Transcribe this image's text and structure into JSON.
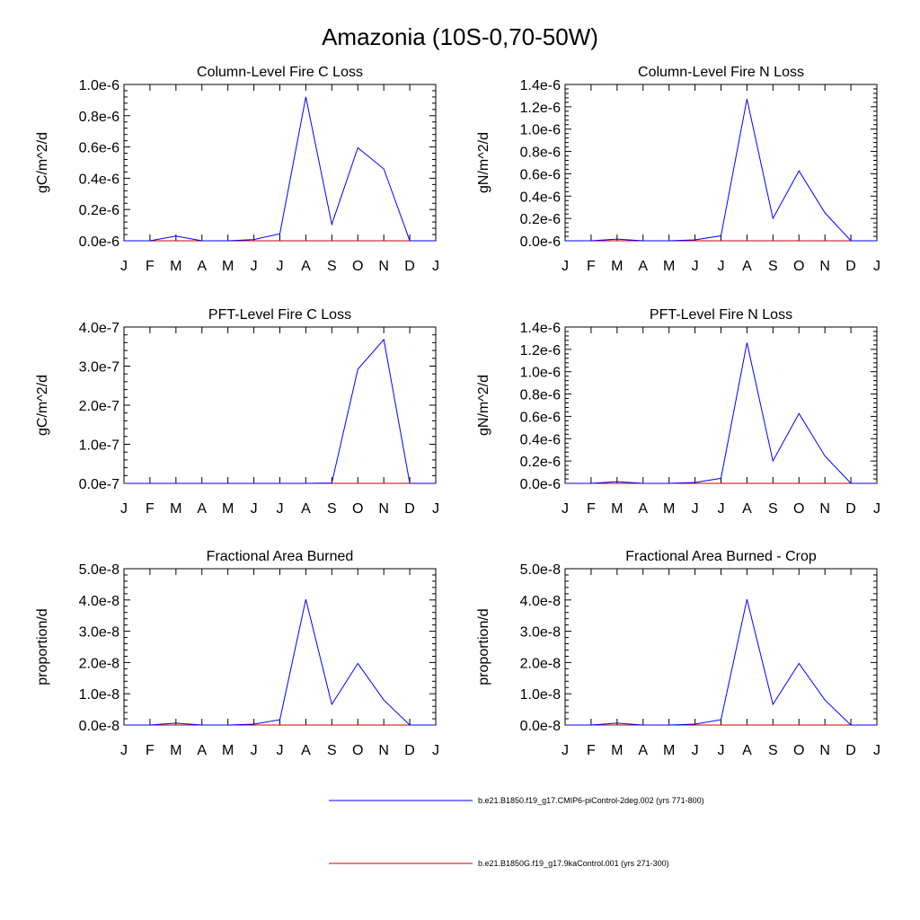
{
  "figure_title": "Amazonia (10S-0,70-50W)",
  "colors": {
    "series_1": "#0000ff",
    "series_2": "#cc0000"
  },
  "legend": {
    "items": [
      {
        "label": "b.e21.B1850.f19_g17.CMIP6-piControl-2deg.002 (yrs 771-800)",
        "color": "#0000ff"
      },
      {
        "label": "b.e21.B1850G.f19_g17.9kaControl.001 (yrs 271-300)",
        "color": "#cc0000"
      }
    ]
  },
  "chart_data": [
    {
      "type": "line",
      "title": "Column-Level Fire C Loss",
      "ylabel": "gC/m^2/d",
      "xlabel": "",
      "x": [
        "J",
        "F",
        "M",
        "A",
        "M",
        "J",
        "J",
        "A",
        "S",
        "O",
        "N",
        "D",
        "J"
      ],
      "ylim": [
        0,
        1e-06
      ],
      "yticks": [
        0,
        2e-07,
        4e-07,
        6e-07,
        8e-07,
        1e-06
      ],
      "ytick_labels": [
        "0.0e-6",
        "0.2e-6",
        "0.4e-6",
        "0.6e-6",
        "0.8e-6",
        "1.0e-6"
      ],
      "grid": false,
      "series": [
        {
          "name": "b.e21.B1850.f19_g17.CMIP6-piControl-2deg.002 (yrs 771-800)",
          "color": "#0000ff",
          "values": [
            0,
            0,
            3e-08,
            0,
            0,
            8e-09,
            4.5e-08,
            9.2e-07,
            1.05e-07,
            5.95e-07,
            4.6e-07,
            0,
            0
          ]
        },
        {
          "name": "b.e21.B1850G.f19_g17.9kaControl.001 (yrs 271-300)",
          "color": "#cc0000",
          "values": [
            0,
            0,
            0,
            0,
            0,
            0,
            0,
            0,
            0,
            0,
            0,
            0,
            0
          ]
        }
      ]
    },
    {
      "type": "line",
      "title": "Column-Level Fire N Loss",
      "ylabel": "gN/m^2/d",
      "xlabel": "",
      "x": [
        "J",
        "F",
        "M",
        "A",
        "M",
        "J",
        "J",
        "A",
        "S",
        "O",
        "N",
        "D",
        "J"
      ],
      "ylim": [
        0,
        1.4e-06
      ],
      "yticks": [
        0,
        2e-07,
        4e-07,
        6e-07,
        8e-07,
        1e-06,
        1.2e-06,
        1.4e-06
      ],
      "ytick_labels": [
        "0.0e-6",
        "0.2e-6",
        "0.4e-6",
        "0.6e-6",
        "0.8e-6",
        "1.0e-6",
        "1.2e-6",
        "1.4e-6"
      ],
      "grid": false,
      "series": [
        {
          "name": "b.e21.B1850.f19_g17.CMIP6-piControl-2deg.002 (yrs 771-800)",
          "color": "#0000ff",
          "values": [
            0,
            0,
            1.5e-08,
            0,
            0,
            8e-09,
            4.5e-08,
            1.27e-06,
            2e-07,
            6.25e-07,
            2.5e-07,
            0,
            0
          ]
        },
        {
          "name": "b.e21.B1850G.f19_g17.9kaControl.001 (yrs 271-300)",
          "color": "#cc0000",
          "values": [
            0,
            0,
            0,
            0,
            0,
            0,
            0,
            0,
            0,
            0,
            0,
            0,
            0
          ]
        }
      ]
    },
    {
      "type": "line",
      "title": "PFT-Level Fire C Loss",
      "ylabel": "gC/m^2/d",
      "xlabel": "",
      "x": [
        "J",
        "F",
        "M",
        "A",
        "M",
        "J",
        "J",
        "A",
        "S",
        "O",
        "N",
        "D",
        "J"
      ],
      "ylim": [
        0,
        4e-07
      ],
      "yticks": [
        0,
        1e-07,
        2e-07,
        3e-07,
        4e-07
      ],
      "ytick_labels": [
        "0.0e-7",
        "1.0e-7",
        "2.0e-7",
        "3.0e-7",
        "4.0e-7"
      ],
      "grid": false,
      "series": [
        {
          "name": "b.e21.B1850.f19_g17.CMIP6-piControl-2deg.002 (yrs 771-800)",
          "color": "#0000ff",
          "values": [
            0,
            0,
            0,
            0,
            0,
            0,
            0,
            0,
            1e-09,
            2.92e-07,
            3.68e-07,
            0,
            0
          ]
        },
        {
          "name": "b.e21.B1850G.f19_g17.9kaControl.001 (yrs 271-300)",
          "color": "#cc0000",
          "values": [
            0,
            0,
            0,
            0,
            0,
            0,
            0,
            0,
            0,
            0,
            0,
            0,
            0
          ]
        }
      ]
    },
    {
      "type": "line",
      "title": "PFT-Level Fire N Loss",
      "ylabel": "gN/m^2/d",
      "xlabel": "",
      "x": [
        "J",
        "F",
        "M",
        "A",
        "M",
        "J",
        "J",
        "A",
        "S",
        "O",
        "N",
        "D",
        "J"
      ],
      "ylim": [
        0,
        1.4e-06
      ],
      "yticks": [
        0,
        2e-07,
        4e-07,
        6e-07,
        8e-07,
        1e-06,
        1.2e-06,
        1.4e-06
      ],
      "ytick_labels": [
        "0.0e-6",
        "0.2e-6",
        "0.4e-6",
        "0.6e-6",
        "0.8e-6",
        "1.0e-6",
        "1.2e-6",
        "1.4e-6"
      ],
      "grid": false,
      "series": [
        {
          "name": "b.e21.B1850.f19_g17.CMIP6-piControl-2deg.002 (yrs 771-800)",
          "color": "#0000ff",
          "values": [
            0,
            0,
            1.5e-08,
            0,
            0,
            8e-09,
            4.5e-08,
            1.26e-06,
            2e-07,
            6.25e-07,
            2.45e-07,
            0,
            0
          ]
        },
        {
          "name": "b.e21.B1850G.f19_g17.9kaControl.001 (yrs 271-300)",
          "color": "#cc0000",
          "values": [
            0,
            0,
            0,
            0,
            0,
            0,
            0,
            0,
            0,
            0,
            0,
            0,
            0
          ]
        }
      ]
    },
    {
      "type": "line",
      "title": "Fractional Area Burned",
      "ylabel": "proportion/d",
      "xlabel": "",
      "x": [
        "J",
        "F",
        "M",
        "A",
        "M",
        "J",
        "J",
        "A",
        "S",
        "O",
        "N",
        "D",
        "J"
      ],
      "ylim": [
        0,
        5e-08
      ],
      "yticks": [
        0,
        1e-08,
        2e-08,
        3e-08,
        4e-08,
        5e-08
      ],
      "ytick_labels": [
        "0.0e-8",
        "1.0e-8",
        "2.0e-8",
        "3.0e-8",
        "4.0e-8",
        "5.0e-8"
      ],
      "grid": false,
      "series": [
        {
          "name": "b.e21.B1850.f19_g17.CMIP6-piControl-2deg.002 (yrs 771-800)",
          "color": "#0000ff",
          "values": [
            0,
            0,
            6e-10,
            0,
            0,
            3e-10,
            1.7e-09,
            4.02e-08,
            6.6e-09,
            1.97e-08,
            8e-09,
            0,
            0
          ]
        },
        {
          "name": "b.e21.B1850G.f19_g17.9kaControl.001 (yrs 271-300)",
          "color": "#cc0000",
          "values": [
            0,
            0,
            0,
            0,
            0,
            0,
            0,
            0,
            0,
            0,
            0,
            0,
            0
          ]
        }
      ]
    },
    {
      "type": "line",
      "title": "Fractional Area Burned - Crop",
      "ylabel": "proportion/d",
      "xlabel": "",
      "x": [
        "J",
        "F",
        "M",
        "A",
        "M",
        "J",
        "J",
        "A",
        "S",
        "O",
        "N",
        "D",
        "J"
      ],
      "ylim": [
        0,
        5e-08
      ],
      "yticks": [
        0,
        1e-08,
        2e-08,
        3e-08,
        4e-08,
        5e-08
      ],
      "ytick_labels": [
        "0.0e-8",
        "1.0e-8",
        "2.0e-8",
        "3.0e-8",
        "4.0e-8",
        "5.0e-8"
      ],
      "grid": false,
      "series": [
        {
          "name": "b.e21.B1850.f19_g17.CMIP6-piControl-2deg.002 (yrs 771-800)",
          "color": "#0000ff",
          "values": [
            0,
            0,
            6e-10,
            0,
            0,
            3e-10,
            1.7e-09,
            4.02e-08,
            6.6e-09,
            1.97e-08,
            8e-09,
            0,
            0
          ]
        },
        {
          "name": "b.e21.B1850G.f19_g17.9kaControl.001 (yrs 271-300)",
          "color": "#cc0000",
          "values": [
            0,
            0,
            0,
            0,
            0,
            0,
            0,
            0,
            0,
            0,
            0,
            0,
            0
          ]
        }
      ]
    }
  ]
}
